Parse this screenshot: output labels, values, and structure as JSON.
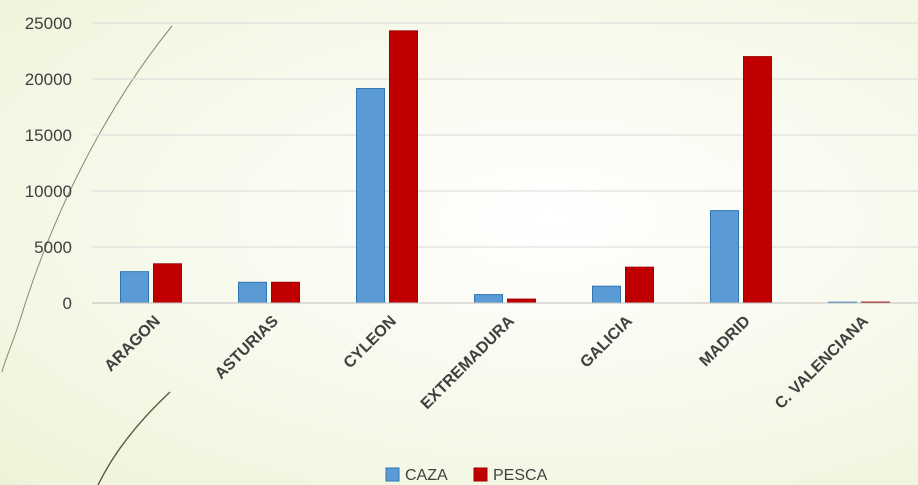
{
  "chart_data": {
    "type": "bar",
    "categories": [
      "ARAGON",
      "ASTURIAS",
      "CYLEON",
      "EXTREMADURA",
      "GALICIA",
      "MADRID",
      "C. VALENCIANA"
    ],
    "series": [
      {
        "name": "CAZA",
        "color": "#5b9bd5",
        "values": [
          2800,
          1850,
          19150,
          750,
          1500,
          8250,
          50
        ]
      },
      {
        "name": "PESCA",
        "color": "#c00000",
        "values": [
          3500,
          1850,
          24300,
          350,
          3200,
          22000,
          80
        ]
      }
    ],
    "yticks": [
      "0",
      "5000",
      "10000",
      "15000",
      "20000",
      "25000"
    ],
    "ylim": [
      0,
      25000
    ],
    "grid": true,
    "legend": "bottom"
  }
}
